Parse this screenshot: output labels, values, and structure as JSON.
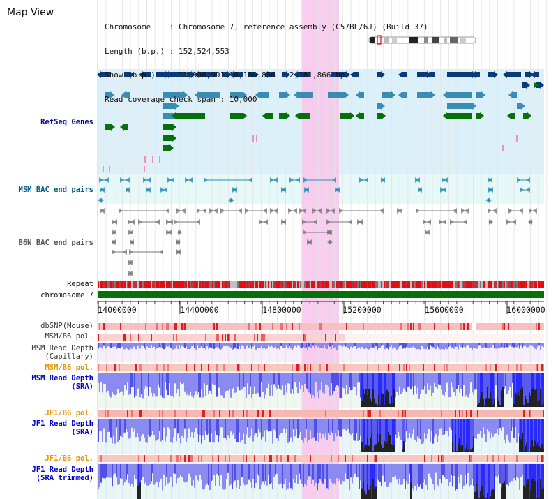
{
  "title": "Map View",
  "info": {
    "line1": "Chromosome    : Chromosome 7, reference assembly (C57BL/6J) (Build 37)",
    "line2": "Length (b.p.) : 152,524,553",
    "line3": "Show (b.p.)   : 13,998,991-16,180,856 : 2,181,866 bp",
    "line4": "Read coverage check span : 10,000"
  },
  "tracks": {
    "refseq": "RefSeq Genes",
    "msm_bac": "MSM BAC end pairs",
    "b6n_bac": "B6N BAC end pairs",
    "repeat": "Repeat",
    "chromosome": "chromosome 7",
    "dbsnp": "dbSNP(Mouse)",
    "msm_b6_pol_1": "MSM/B6 pol.",
    "msm_depth_cap": "MSM Read Depth\n(Capillary)",
    "msm_b6_pol_2": "MSM/B6 pol.",
    "msm_depth_sra": "MSM Read Depth\n(SRA)",
    "jf1_b6_pol_1": "JF1/B6 pol.",
    "jf1_depth_sra": "JF1 Read Depth\n(SRA)",
    "jf1_b6_pol_2": "JF1/B6 pol.",
    "jf1_depth_trim": "JF1 Read Depth\n(SRA trimmed)"
  },
  "axis": {
    "ticks": [
      "14000000",
      "14400000",
      "14800000",
      "15200000",
      "15600000",
      "16000000"
    ]
  },
  "colors": {
    "refseq_label": "#00008b",
    "msm_label": "#006080",
    "orange_label": "#e69500",
    "blue_label": "#0000cc",
    "highlight": "#f8c8ec",
    "refseq_bg": "#dcf0fa",
    "bac_bg": "#e6f8f8",
    "gene_navy": "#0a3a78",
    "gene_teal": "#3a8cb4",
    "gene_green": "#087008"
  }
}
